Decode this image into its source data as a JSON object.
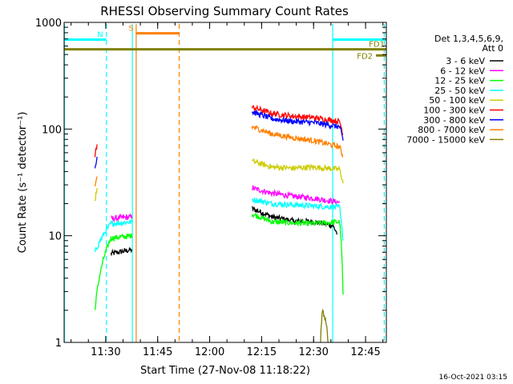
{
  "page": {
    "footer_timestamp": "16-Oct-2021 03:15"
  },
  "chart_data": {
    "type": "line",
    "title": "RHESSI Observing Summary Count Rates",
    "xlabel": "Start Time (27-Nov-08 11:18:22)",
    "ylabel": "Count Rate (s⁻¹ detector⁻¹)",
    "yscale": "log",
    "ylim": [
      1,
      1000
    ],
    "y_ticks": [
      {
        "value": 1,
        "label": "1"
      },
      {
        "value": 10,
        "label": "10"
      },
      {
        "value": 100,
        "label": "100"
      },
      {
        "value": 1000,
        "label": "1000"
      }
    ],
    "xlim_minutes": [
      0,
      93
    ],
    "x_ticks": [
      {
        "t": 12,
        "label": "11:30"
      },
      {
        "t": 27,
        "label": "11:45"
      },
      {
        "t": 42,
        "label": "12:00"
      },
      {
        "t": 57,
        "label": "12:15"
      },
      {
        "t": 72,
        "label": "12:30"
      },
      {
        "t": 87,
        "label": "12:45"
      }
    ],
    "legend": {
      "position": "right",
      "header": [
        "Det 1,3,4,5,6,9,",
        "Att 0"
      ]
    },
    "series": [
      {
        "name": "3 - 6 keV",
        "color": "#000000",
        "values": [
          {
            "t": 13.5,
            "v": 6.8
          },
          {
            "t": 19.6,
            "v": 7.4
          },
          {
            "t": 54.2,
            "v": 18
          },
          {
            "t": 60,
            "v": 15
          },
          {
            "t": 66,
            "v": 13.8
          },
          {
            "t": 72,
            "v": 13.5
          },
          {
            "t": 77.5,
            "v": 12.5
          },
          {
            "t": 78.8,
            "v": 10.5
          }
        ]
      },
      {
        "name": "6 - 12 keV",
        "color": "#ff00ff",
        "values": [
          {
            "t": 13.5,
            "v": 14.5
          },
          {
            "t": 19.6,
            "v": 15
          },
          {
            "t": 54.2,
            "v": 28
          },
          {
            "t": 60,
            "v": 25
          },
          {
            "t": 66,
            "v": 23.5
          },
          {
            "t": 72,
            "v": 22.5
          },
          {
            "t": 79.5,
            "v": 20.5
          }
        ]
      },
      {
        "name": "12 - 25 keV",
        "color": "#00ff00",
        "values": [
          {
            "t": 0,
            "v": 2.0
          },
          {
            "t": 8.9,
            "v": 2.0
          },
          {
            "t": 13.5,
            "v": 9.5
          },
          {
            "t": 19.6,
            "v": 10
          },
          {
            "t": 54.2,
            "v": 16
          },
          {
            "t": 60,
            "v": 13.5
          },
          {
            "t": 66,
            "v": 13.2
          },
          {
            "t": 72,
            "v": 13
          },
          {
            "t": 79.5,
            "v": 13.5
          },
          {
            "t": 80.5,
            "v": 2.8
          },
          {
            "t": 89,
            "v": 2.8
          }
        ]
      },
      {
        "name": "25 - 50 keV",
        "color": "#00ffff",
        "values": [
          {
            "t": 0,
            "v": 7.0
          },
          {
            "t": 8.9,
            "v": 7.0
          },
          {
            "t": 13.5,
            "v": 13
          },
          {
            "t": 19.6,
            "v": 13.5
          },
          {
            "t": 54.2,
            "v": 22
          },
          {
            "t": 60,
            "v": 20
          },
          {
            "t": 66,
            "v": 19.5
          },
          {
            "t": 72,
            "v": 19
          },
          {
            "t": 79.5,
            "v": 18.5
          },
          {
            "t": 80.5,
            "v": 9
          },
          {
            "t": 89,
            "v": 8.5
          }
        ]
      },
      {
        "name": "50 - 100 keV",
        "color": "#cccc00",
        "values": [
          {
            "t": 0,
            "v": 21
          },
          {
            "t": 8.9,
            "v": 21
          },
          {
            "t": 9.5,
            "v": 28
          },
          {
            "t": 19.6,
            "v": 31
          },
          {
            "t": 54.2,
            "v": 50
          },
          {
            "t": 60,
            "v": 44
          },
          {
            "t": 66,
            "v": 43
          },
          {
            "t": 72,
            "v": 44
          },
          {
            "t": 79.5,
            "v": 42
          },
          {
            "t": 80.5,
            "v": 31
          },
          {
            "t": 89,
            "v": 24
          }
        ]
      },
      {
        "name": "100 - 300 keV",
        "color": "#ff0000",
        "values": [
          {
            "t": 0,
            "v": 56
          },
          {
            "t": 8.9,
            "v": 56
          },
          {
            "t": 9.5,
            "v": 72
          },
          {
            "t": 19.6,
            "v": 80
          },
          {
            "t": 54.2,
            "v": 160
          },
          {
            "t": 60,
            "v": 140
          },
          {
            "t": 66,
            "v": 132
          },
          {
            "t": 72,
            "v": 128
          },
          {
            "t": 79.5,
            "v": 118
          },
          {
            "t": 80.5,
            "v": 90
          },
          {
            "t": 89,
            "v": 67
          }
        ]
      },
      {
        "name": "300 - 800 keV",
        "color": "#0000ff",
        "values": [
          {
            "t": 0,
            "v": 43
          },
          {
            "t": 8.9,
            "v": 43
          },
          {
            "t": 9.5,
            "v": 55
          },
          {
            "t": 19.6,
            "v": 57
          },
          {
            "t": 54.2,
            "v": 145
          },
          {
            "t": 60,
            "v": 125
          },
          {
            "t": 66,
            "v": 118
          },
          {
            "t": 72,
            "v": 115
          },
          {
            "t": 79.5,
            "v": 105
          },
          {
            "t": 80.5,
            "v": 78
          },
          {
            "t": 89,
            "v": 58
          }
        ]
      },
      {
        "name": "800 - 7000 keV",
        "color": "#ff8000",
        "values": [
          {
            "t": 0,
            "v": 29
          },
          {
            "t": 8.9,
            "v": 29
          },
          {
            "t": 9.5,
            "v": 36
          },
          {
            "t": 19.6,
            "v": 38
          },
          {
            "t": 54.2,
            "v": 105
          },
          {
            "t": 60,
            "v": 90
          },
          {
            "t": 66,
            "v": 83
          },
          {
            "t": 72,
            "v": 78
          },
          {
            "t": 79.5,
            "v": 68
          },
          {
            "t": 80.5,
            "v": 55
          },
          {
            "t": 89,
            "v": 41
          }
        ]
      },
      {
        "name": "7000 - 15000 keV",
        "color": "#808000",
        "values": [
          {
            "t": 74,
            "v": 1.0
          },
          {
            "t": 74.5,
            "v": 2.0
          },
          {
            "t": 75.5,
            "v": 1.6
          },
          {
            "t": 76.2,
            "v": 1.0
          }
        ]
      }
    ],
    "annotations": [
      {
        "label": "N",
        "color": "#00ffff",
        "kind": "span",
        "t0": 0,
        "t1": 12.2
      },
      {
        "label": "",
        "color": "#00ffff",
        "kind": "span",
        "t0": 77.5,
        "t1": 93
      },
      {
        "label": "S",
        "color": "#ff8000",
        "kind": "span",
        "t0": 20.8,
        "t1": 33.2
      },
      {
        "label": "FD1",
        "color": "#808000",
        "kind": "span",
        "t0": 0,
        "t1": 93
      },
      {
        "label": "FD2",
        "color": "#808000",
        "kind": "span",
        "t0": 90,
        "t1": 93
      }
    ],
    "vertical_markers": [
      {
        "t": 0.1,
        "color": "#00ffff",
        "style": "solid"
      },
      {
        "t": 12.2,
        "color": "#00ffff",
        "style": "dashed"
      },
      {
        "t": 19.7,
        "color": "#00ffff",
        "style": "solid"
      },
      {
        "t": 20.8,
        "color": "#ff8000",
        "style": "solid"
      },
      {
        "t": 33.2,
        "color": "#ff8000",
        "style": "dashed"
      },
      {
        "t": 77.5,
        "color": "#00ffff",
        "style": "solid"
      },
      {
        "t": 92.4,
        "color": "#00ffff",
        "style": "dashed"
      }
    ]
  }
}
